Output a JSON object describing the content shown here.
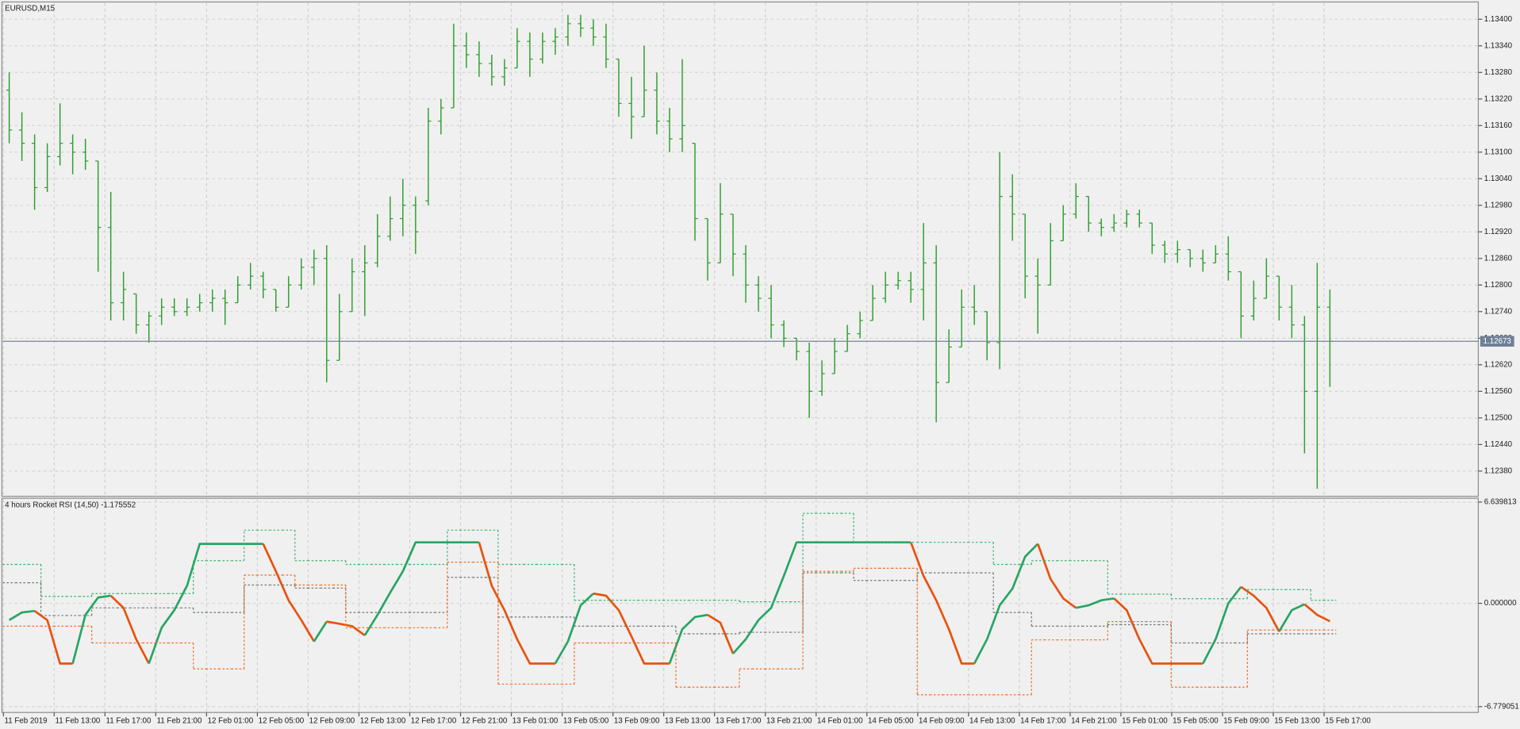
{
  "chart_data": [
    {
      "type": "ohlc",
      "title": "EURUSD,M15",
      "color": "#2f9e2f",
      "grid": true,
      "ylim": [
        1.12323,
        1.13439
      ],
      "yticks": [
        {
          "value": 1.134,
          "label": "1.13400"
        },
        {
          "value": 1.1334,
          "label": "1.13340"
        },
        {
          "value": 1.1328,
          "label": "1.13280"
        },
        {
          "value": 1.1322,
          "label": "1.13220"
        },
        {
          "value": 1.1316,
          "label": "1.13160"
        },
        {
          "value": 1.131,
          "label": "1.13100"
        },
        {
          "value": 1.1304,
          "label": "1.13040"
        },
        {
          "value": 1.1298,
          "label": "1.12980"
        },
        {
          "value": 1.1292,
          "label": "1.12920"
        },
        {
          "value": 1.1286,
          "label": "1.12860"
        },
        {
          "value": 1.128,
          "label": "1.12800"
        },
        {
          "value": 1.1274,
          "label": "1.12740"
        },
        {
          "value": 1.1268,
          "label": "1.12680"
        },
        {
          "value": 1.1262,
          "label": "1.12620"
        },
        {
          "value": 1.1256,
          "label": "1.12560"
        },
        {
          "value": 1.125,
          "label": "1.12500"
        },
        {
          "value": 1.1244,
          "label": "1.12440"
        },
        {
          "value": 1.1238,
          "label": "1.12380"
        }
      ],
      "last_price": {
        "value": 1.12673,
        "label": "1.12673"
      },
      "categories": [
        "11 Feb 2019",
        null,
        null,
        null,
        "11 Feb 13:00",
        null,
        null,
        null,
        "11 Feb 17:00",
        null,
        null,
        null,
        "11 Feb 21:00",
        null,
        null,
        null,
        "12 Feb 01:00",
        null,
        null,
        null,
        "12 Feb 05:00",
        null,
        null,
        null,
        "12 Feb 09:00",
        null,
        null,
        null,
        "12 Feb 13:00",
        null,
        null,
        null,
        "12 Feb 17:00",
        null,
        null,
        null,
        "12 Feb 21:00",
        null,
        null,
        null,
        "13 Feb 01:00",
        null,
        null,
        null,
        "13 Feb 05:00",
        null,
        null,
        null,
        "13 Feb 09:00",
        null,
        null,
        null,
        "13 Feb 13:00",
        null,
        null,
        null,
        "13 Feb 17:00",
        null,
        null,
        null,
        "13 Feb 21:00",
        null,
        null,
        null,
        "14 Feb 01:00",
        null,
        null,
        null,
        "14 Feb 05:00",
        null,
        null,
        null,
        "14 Feb 09:00",
        null,
        null,
        null,
        "14 Feb 13:00",
        null,
        null,
        null,
        "14 Feb 17:00",
        null,
        null,
        null,
        "14 Feb 21:00",
        null,
        null,
        null,
        "15 Feb 01:00",
        null,
        null,
        null,
        "15 Feb 05:00",
        null,
        null,
        null,
        "15 Feb 09:00",
        null,
        null,
        null,
        "15 Feb 13:00",
        null,
        null,
        null,
        "15 Feb 17:00"
      ],
      "open": [
        1.1324,
        1.1315,
        1.1312,
        1.1302,
        1.1309,
        1.1312,
        1.131,
        1.1308,
        1.1293,
        1.1276,
        1.1278,
        1.1271,
        1.1273,
        1.1275,
        1.1274,
        1.1275,
        1.1276,
        1.1277,
        1.1276,
        1.128,
        1.1282,
        1.1279,
        1.1275,
        1.128,
        1.1284,
        1.1286,
        1.1263,
        1.1274,
        1.1283,
        1.1285,
        1.1291,
        1.1295,
        1.1298,
        1.1299,
        1.1317,
        1.132,
        1.1334,
        1.1332,
        1.133,
        1.1327,
        1.1329,
        1.1335,
        1.1331,
        1.1335,
        1.1336,
        1.1339,
        1.1338,
        1.1336,
        1.1331,
        1.1321,
        1.1318,
        1.1324,
        1.1317,
        1.1313,
        1.1312,
        1.1295,
        1.1285,
        1.1296,
        1.1287,
        1.128,
        1.1277,
        1.1271,
        1.1268,
        1.1265,
        1.1256,
        1.126,
        1.1265,
        1.1269,
        1.1272,
        1.1277,
        1.128,
        1.1281,
        1.1279,
        1.1285,
        1.1258,
        1.1266,
        1.1275,
        1.1274,
        1.1267,
        1.13,
        1.1296,
        1.1282,
        1.128,
        1.129,
        1.1296,
        1.13,
        1.1294,
        1.1293,
        1.1294,
        1.1296,
        1.1294,
        1.1289,
        1.1287,
        1.1288,
        1.1286,
        1.1285,
        1.1287,
        1.1283,
        1.1273,
        1.1277,
        1.1282,
        1.1275,
        1.1271,
        1.1256,
        1.1275
      ],
      "high": [
        1.1328,
        1.1319,
        1.1314,
        1.1312,
        1.1321,
        1.1314,
        1.1313,
        1.1308,
        1.1301,
        1.1283,
        1.1278,
        1.1274,
        1.1277,
        1.1277,
        1.1277,
        1.1278,
        1.1279,
        1.1279,
        1.1282,
        1.1285,
        1.1283,
        1.1279,
        1.1282,
        1.1286,
        1.1288,
        1.1289,
        1.1278,
        1.1286,
        1.1289,
        1.1296,
        1.13,
        1.1304,
        1.13,
        1.132,
        1.1322,
        1.1339,
        1.1337,
        1.1335,
        1.1332,
        1.1331,
        1.1338,
        1.1337,
        1.1337,
        1.1338,
        1.1341,
        1.1341,
        1.134,
        1.1339,
        1.1331,
        1.1327,
        1.1334,
        1.1328,
        1.132,
        1.1331,
        1.1312,
        1.1295,
        1.1303,
        1.1296,
        1.1289,
        1.1282,
        1.128,
        1.1272,
        1.1268,
        1.1267,
        1.1263,
        1.1268,
        1.1271,
        1.1274,
        1.128,
        1.1283,
        1.1283,
        1.1283,
        1.1294,
        1.1289,
        1.127,
        1.1279,
        1.128,
        1.1274,
        1.131,
        1.1305,
        1.1296,
        1.1286,
        1.1294,
        1.1298,
        1.1303,
        1.13,
        1.1295,
        1.1296,
        1.1297,
        1.1297,
        1.1294,
        1.129,
        1.129,
        1.1288,
        1.1288,
        1.1289,
        1.1291,
        1.1283,
        1.1281,
        1.1286,
        1.1282,
        1.128,
        1.1273,
        1.1285,
        1.1279
      ],
      "low": [
        1.1312,
        1.1308,
        1.1297,
        1.1301,
        1.1307,
        1.1305,
        1.1306,
        1.1283,
        1.1272,
        1.1272,
        1.1269,
        1.1267,
        1.1271,
        1.1273,
        1.1273,
        1.1274,
        1.1274,
        1.1271,
        1.1276,
        1.1279,
        1.1277,
        1.1274,
        1.1275,
        1.1279,
        1.128,
        1.1258,
        1.1263,
        1.1274,
        1.1273,
        1.1284,
        1.129,
        1.1291,
        1.1287,
        1.1298,
        1.1314,
        1.132,
        1.1329,
        1.1327,
        1.1325,
        1.1325,
        1.1329,
        1.1327,
        1.133,
        1.1332,
        1.1334,
        1.1336,
        1.1334,
        1.1329,
        1.1318,
        1.1313,
        1.1318,
        1.1314,
        1.131,
        1.131,
        1.129,
        1.1281,
        1.1285,
        1.1282,
        1.1276,
        1.1274,
        1.1268,
        1.1266,
        1.1263,
        1.125,
        1.1255,
        1.126,
        1.1265,
        1.1268,
        1.1272,
        1.1276,
        1.1279,
        1.1276,
        1.1272,
        1.1249,
        1.1258,
        1.1266,
        1.1271,
        1.1263,
        1.1261,
        1.129,
        1.1277,
        1.1269,
        1.128,
        1.129,
        1.1295,
        1.1292,
        1.1291,
        1.1292,
        1.1293,
        1.1293,
        1.1287,
        1.1285,
        1.1285,
        1.1284,
        1.1283,
        1.1285,
        1.1281,
        1.1268,
        1.1272,
        1.1277,
        1.1272,
        1.1268,
        1.1242,
        1.1234,
        1.1257
      ],
      "close": [
        1.1315,
        1.1312,
        1.1302,
        1.1309,
        1.1312,
        1.131,
        1.1308,
        1.1293,
        1.1276,
        1.1279,
        1.1271,
        1.1273,
        1.1275,
        1.1274,
        1.1275,
        1.1276,
        1.1277,
        1.1276,
        1.128,
        1.1282,
        1.1279,
        1.1275,
        1.128,
        1.1284,
        1.1286,
        1.1263,
        1.1274,
        1.1283,
        1.1285,
        1.1291,
        1.1295,
        1.1298,
        1.1292,
        1.1317,
        1.132,
        1.1334,
        1.1332,
        1.133,
        1.1327,
        1.1329,
        1.1335,
        1.1331,
        1.1335,
        1.1336,
        1.1339,
        1.1338,
        1.1336,
        1.1331,
        1.1321,
        1.1318,
        1.1324,
        1.1317,
        1.1313,
        1.1316,
        1.1295,
        1.1285,
        1.1296,
        1.1287,
        1.128,
        1.1277,
        1.1271,
        1.1268,
        1.1265,
        1.1256,
        1.126,
        1.1265,
        1.1269,
        1.1272,
        1.1277,
        1.128,
        1.1281,
        1.1279,
        1.1285,
        1.1258,
        1.1266,
        1.1275,
        1.1274,
        1.1267,
        1.13,
        1.1296,
        1.1282,
        1.128,
        1.129,
        1.1296,
        1.13,
        1.1294,
        1.1293,
        1.1294,
        1.1296,
        1.1294,
        1.1289,
        1.1287,
        1.1288,
        1.1286,
        1.1285,
        1.1287,
        1.1283,
        1.1273,
        1.1277,
        1.1282,
        1.1275,
        1.1271,
        1.1256,
        1.1275,
        1.12673
      ]
    },
    {
      "type": "line",
      "title": "4 hours Rocket RSI (14,50) -1.175552",
      "grid": true,
      "ylim": [
        -7.16,
        6.89
      ],
      "yticks": [
        6.639813,
        {
          "value": 0,
          "label": "0.000000"
        },
        -6.779051
      ],
      "series": [
        {
          "up_color": "#27a564",
          "down_color": "#e8520e",
          "values": [
            -1.1,
            -0.6,
            -0.5,
            -1.1,
            -3.95,
            -3.95,
            -0.76,
            0.38,
            0.5,
            -0.3,
            -2.36,
            -3.95,
            -1.6,
            -0.45,
            1.15,
            3.9,
            3.9,
            3.9,
            3.9,
            3.9,
            3.9,
            2.1,
            0.2,
            -1.1,
            -2.5,
            -1.2,
            -1.34,
            -1.5,
            -2.1,
            -0.76,
            0.7,
            2.1,
            4.0,
            4.0,
            4.0,
            4.0,
            4.0,
            4.0,
            1.15,
            -0.45,
            -2.36,
            -3.95,
            -3.95,
            -3.95,
            -2.5,
            -0.13,
            0.64,
            0.5,
            -0.45,
            -2.17,
            -3.95,
            -3.95,
            -3.95,
            -1.7,
            -0.9,
            -0.76,
            -1.27,
            -3.3,
            -2.36,
            -1.1,
            -0.3,
            1.8,
            4.0,
            4.0,
            4.0,
            4.0,
            4.0,
            4.0,
            4.0,
            4.0,
            4.0,
            4.0,
            1.8,
            0.2,
            -1.7,
            -3.95,
            -3.95,
            -2.36,
            -0.13,
            0.96,
            3.06,
            3.9,
            1.6,
            0.32,
            -0.3,
            -0.13,
            0.2,
            0.32,
            -0.45,
            -2.36,
            -3.95,
            -3.95,
            -3.95,
            -3.95,
            -3.95,
            -2.36,
            0.0,
            1.08,
            0.5,
            -0.3,
            -1.85,
            -0.45,
            -0.06,
            -0.76,
            -1.18
          ]
        },
        {
          "color": "#3cb371",
          "dash": true,
          "values": [
            2.55,
            2.55,
            2.55,
            0.45,
            0.45,
            0.45,
            0.45,
            0.64,
            0.64,
            0.64,
            0.64,
            0.64,
            0.64,
            0.64,
            0.64,
            2.8,
            2.8,
            2.8,
            2.8,
            4.8,
            4.8,
            4.8,
            4.8,
            2.8,
            2.8,
            2.8,
            2.8,
            2.55,
            2.55,
            2.55,
            2.55,
            2.55,
            2.55,
            2.55,
            2.55,
            4.8,
            4.8,
            4.8,
            4.8,
            2.55,
            2.55,
            2.55,
            2.55,
            2.55,
            2.55,
            0.2,
            0.2,
            0.2,
            0.2,
            0.2,
            0.2,
            0.2,
            0.2,
            0.2,
            0.2,
            0.2,
            0.2,
            0.2,
            0.1,
            0.1,
            0.1,
            0.1,
            0.1,
            5.9,
            5.9,
            5.9,
            5.9,
            4.0,
            4.0,
            4.0,
            4.0,
            4.0,
            4.0,
            4.0,
            4.0,
            4.0,
            4.0,
            4.0,
            2.55,
            2.55,
            2.55,
            2.8,
            2.8,
            2.8,
            2.8,
            2.8,
            2.8,
            0.6,
            0.6,
            0.6,
            0.6,
            0.6,
            0.3,
            0.3,
            0.3,
            0.3,
            0.3,
            0.3,
            0.9,
            0.9,
            0.9,
            0.9,
            0.9,
            0.2,
            0.2
          ]
        },
        {
          "color": "#6b786e",
          "dash": true,
          "values": [
            1.35,
            1.35,
            1.35,
            -0.8,
            -0.8,
            -0.8,
            -0.8,
            -0.3,
            -0.3,
            -0.3,
            -0.3,
            -0.3,
            -0.3,
            -0.3,
            -0.3,
            -0.6,
            -0.6,
            -0.6,
            -0.6,
            1.2,
            1.2,
            1.2,
            1.2,
            1.0,
            1.0,
            1.0,
            1.0,
            -0.6,
            -0.6,
            -0.6,
            -0.6,
            -0.6,
            -0.6,
            -0.6,
            -0.6,
            1.7,
            1.7,
            1.7,
            1.7,
            -0.9,
            -0.9,
            -0.9,
            -0.9,
            -0.9,
            -0.9,
            -1.5,
            -1.5,
            -1.5,
            -1.5,
            -1.5,
            -1.5,
            -1.5,
            -1.5,
            -2.0,
            -2.0,
            -2.0,
            -2.0,
            -2.0,
            -1.9,
            -1.9,
            -1.9,
            -1.9,
            -1.9,
            2.0,
            2.0,
            2.0,
            2.0,
            1.5,
            1.5,
            1.5,
            1.5,
            1.5,
            2.0,
            2.0,
            2.0,
            2.0,
            2.0,
            2.0,
            -0.6,
            -0.6,
            -0.6,
            -1.5,
            -1.5,
            -1.5,
            -1.5,
            -1.5,
            -1.5,
            -1.4,
            -1.4,
            -1.4,
            -1.4,
            -1.4,
            -2.6,
            -2.6,
            -2.6,
            -2.6,
            -2.6,
            -2.6,
            -2.0,
            -2.0,
            -2.0,
            -2.0,
            -2.0,
            -2.0,
            -2.0
          ]
        },
        {
          "color": "#f06a20",
          "dash": true,
          "values": [
            -1.5,
            -1.5,
            -1.5,
            -1.5,
            -1.5,
            -1.5,
            -1.5,
            -2.6,
            -2.6,
            -2.6,
            -2.6,
            -2.6,
            -2.6,
            -2.6,
            -2.6,
            -4.3,
            -4.3,
            -4.3,
            -4.3,
            1.85,
            1.85,
            1.85,
            1.85,
            1.2,
            1.2,
            1.2,
            1.2,
            -1.6,
            -1.6,
            -1.6,
            -1.6,
            -1.6,
            -1.6,
            -1.6,
            -1.6,
            2.7,
            2.7,
            2.7,
            2.7,
            -5.3,
            -5.3,
            -5.3,
            -5.3,
            -5.3,
            -5.3,
            -2.6,
            -2.6,
            -2.6,
            -2.6,
            -2.6,
            -2.6,
            -2.6,
            -2.6,
            -5.5,
            -5.5,
            -5.5,
            -5.5,
            -5.5,
            -4.3,
            -4.3,
            -4.3,
            -4.3,
            -4.3,
            2.1,
            2.1,
            2.1,
            2.1,
            2.3,
            2.3,
            2.3,
            2.3,
            2.3,
            -6.0,
            -6.0,
            -6.0,
            -6.0,
            -6.0,
            -6.0,
            -6.0,
            -6.0,
            -6.0,
            -2.4,
            -2.4,
            -2.4,
            -2.4,
            -2.4,
            -2.4,
            -1.2,
            -1.2,
            -1.2,
            -1.2,
            -1.2,
            -5.5,
            -5.5,
            -5.5,
            -5.5,
            -5.5,
            -5.5,
            -1.75,
            -1.75,
            -1.75,
            -1.75,
            -1.75,
            -1.75,
            -1.75
          ]
        }
      ]
    }
  ]
}
